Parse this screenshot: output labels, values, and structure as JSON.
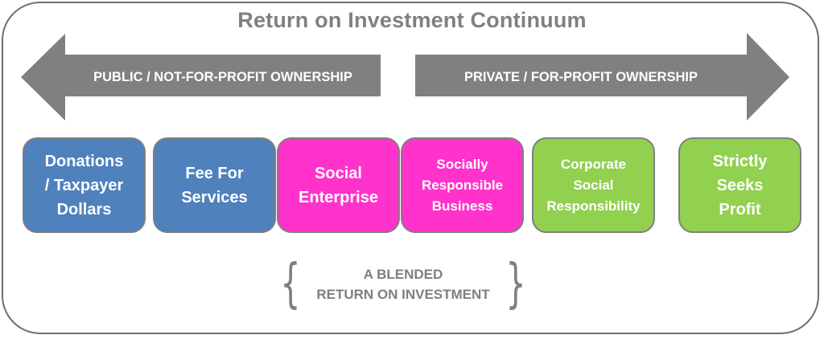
{
  "title": "Return on Investment Continuum",
  "arrows": {
    "left_label": "PUBLIC / NOT-FOR-PROFIT OWNERSHIP",
    "right_label": "PRIVATE / FOR-PROFIT OWNERSHIP",
    "color": "#808080"
  },
  "boxes": [
    {
      "label": "Donations\n/ Taxpayer\nDollars",
      "color": "#4f81bd"
    },
    {
      "label": "Fee For\nServices",
      "color": "#4f81bd"
    },
    {
      "label": "Social\nEnterprise",
      "color": "#ff33cc"
    },
    {
      "label": "Socially\nResponsible\nBusiness",
      "color": "#ff33cc"
    },
    {
      "label": "Corporate\nSocial\nResponsibility",
      "color": "#92d050"
    },
    {
      "label": "Strictly\nSeeks\nProfit",
      "color": "#92d050"
    }
  ],
  "blended": {
    "text": "A BLENDED\nRETURN ON INVESTMENT",
    "open_brace": "{",
    "close_brace": "}"
  }
}
